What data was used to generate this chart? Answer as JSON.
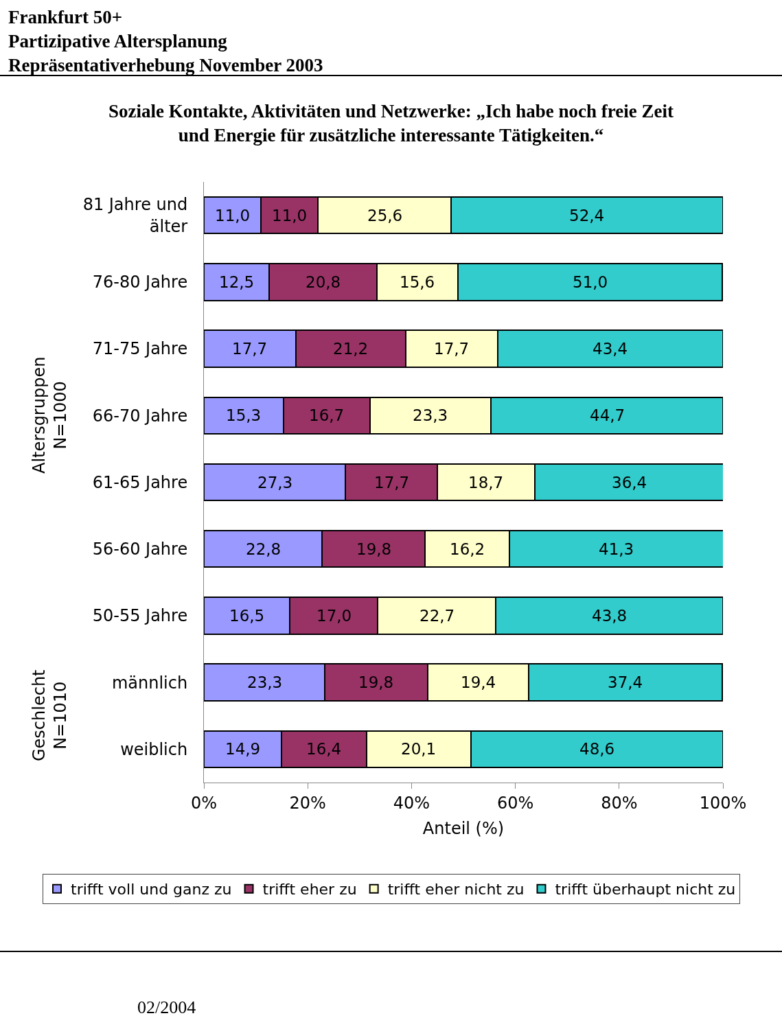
{
  "chart_data": {
    "type": "bar",
    "orientation": "horizontal",
    "stacked": true,
    "title": "Frankfurt 50+\nPartizipative Altersplanung\nRepräsentativerhebung November 2003",
    "subtitle": "Soziale Kontakte, Aktivitäten und Netzwerke: „Ich habe noch freie Zeit\nund Energie für zusätzliche interessante Tätigkeiten.“",
    "xlabel": "Anteil (%)",
    "categories": [
      "81 Jahre und\nälter",
      "76-80 Jahre",
      "71-75 Jahre",
      "66-70 Jahre",
      "61-65 Jahre",
      "56-60 Jahre",
      "50-55 Jahre",
      "männlich",
      "weiblich"
    ],
    "series": [
      {
        "name": "trifft voll und ganz zu",
        "color": "#9999ff",
        "values": [
          11.0,
          12.5,
          17.7,
          15.3,
          27.3,
          22.8,
          16.5,
          23.3,
          14.9
        ],
        "value_labels": [
          "11,0",
          "12,5",
          "17,7",
          "15,3",
          "27,3",
          "22,8",
          "16,5",
          "23,3",
          "14,9"
        ]
      },
      {
        "name": "trifft eher zu",
        "color": "#993366",
        "values": [
          11.0,
          20.8,
          21.2,
          16.7,
          17.7,
          19.8,
          17.0,
          19.8,
          16.4
        ],
        "value_labels": [
          "11,0",
          "20,8",
          "21,2",
          "16,7",
          "17,7",
          "19,8",
          "17,0",
          "19,8",
          "16,4"
        ]
      },
      {
        "name": "trifft eher nicht zu",
        "color": "#ffffcc",
        "values": [
          25.6,
          15.6,
          17.7,
          23.3,
          18.7,
          16.2,
          22.7,
          19.4,
          20.1
        ],
        "value_labels": [
          "25,6",
          "15,6",
          "17,7",
          "23,3",
          "18,7",
          "16,2",
          "22,7",
          "19,4",
          "20,1"
        ]
      },
      {
        "name": "trifft überhaupt nicht zu",
        "color": "#33cccc",
        "values": [
          52.4,
          51.0,
          43.4,
          44.7,
          36.4,
          41.3,
          43.8,
          37.4,
          48.6
        ],
        "value_labels": [
          "52,4",
          "51,0",
          "43,4",
          "44,7",
          "36,4",
          "41,3",
          "43,8",
          "37,4",
          "48,6"
        ]
      }
    ],
    "xlim": [
      0,
      100
    ],
    "xticks": [
      {
        "value": 0,
        "label": "0%"
      },
      {
        "value": 20,
        "label": "20%"
      },
      {
        "value": 40,
        "label": "40%"
      },
      {
        "value": 60,
        "label": "60%"
      },
      {
        "value": 80,
        "label": "80%"
      },
      {
        "value": 100,
        "label": "100%"
      }
    ],
    "legend": "bottom",
    "annotations": [
      "Altersgruppen\nN=1000",
      "Geschlecht\nN=1010",
      "02/2004"
    ]
  }
}
